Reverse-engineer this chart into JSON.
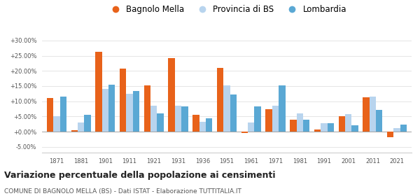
{
  "years": [
    1871,
    1881,
    1901,
    1911,
    1921,
    1931,
    1936,
    1951,
    1961,
    1971,
    1981,
    1991,
    2001,
    2011,
    2021
  ],
  "bagnolo": [
    11.0,
    0.5,
    26.2,
    20.7,
    15.3,
    24.2,
    5.5,
    21.0,
    -0.5,
    7.3,
    4.0,
    0.8,
    5.0,
    11.3,
    -1.8
  ],
  "provincia": [
    5.0,
    3.0,
    14.0,
    12.5,
    8.5,
    8.5,
    3.2,
    15.2,
    3.0,
    8.5,
    6.0,
    2.8,
    5.8,
    11.5,
    1.2
  ],
  "lombardia": [
    11.5,
    5.5,
    15.5,
    13.3,
    6.0,
    8.2,
    4.3,
    12.3,
    8.2,
    15.3,
    4.0,
    2.8,
    2.0,
    7.2,
    2.3
  ],
  "color_bagnolo": "#e8621a",
  "color_provincia": "#b8d4ee",
  "color_lombardia": "#5aa8d4",
  "title": "Variazione percentuale della popolazione ai censimenti",
  "subtitle": "COMUNE DI BAGNOLO MELLA (BS) - Dati ISTAT - Elaborazione TUTTITALIA.IT",
  "legend_labels": [
    "Bagnolo Mella",
    "Provincia di BS",
    "Lombardia"
  ],
  "ylim": [
    -7.0,
    33.0
  ],
  "yticks": [
    -5.0,
    0.0,
    5.0,
    10.0,
    15.0,
    20.0,
    25.0,
    30.0
  ]
}
